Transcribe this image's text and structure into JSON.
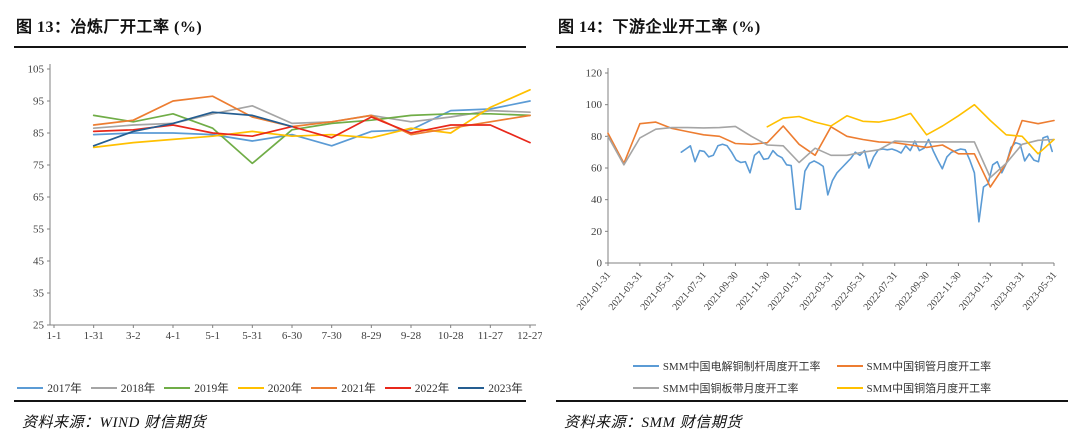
{
  "page": {
    "background": "#ffffff",
    "divider_color": "#141414"
  },
  "figures": [
    {
      "id": "figure-13",
      "title": "图 13：冶炼厂开工率 (%)",
      "source": "资料来源：WIND 财信期货"
    },
    {
      "id": "figure-14",
      "title": "图 14：下游企业开工率 (%)",
      "source": "资料来源：SMM 财信期货"
    }
  ],
  "chart_data": [
    {
      "type": "line",
      "title": "冶炼厂开工率 (%)",
      "xlabel": "",
      "ylabel": "",
      "ylim": [
        25,
        105
      ],
      "ystep": 10,
      "grid": false,
      "legend_position": "bottom",
      "axis_color": "#808080",
      "categories": [
        "1-1",
        "1-31",
        "3-2",
        "4-1",
        "5-1",
        "5-31",
        "6-30",
        "7-30",
        "8-29",
        "9-28",
        "10-28",
        "11-27",
        "12-27"
      ],
      "series": [
        {
          "name": "2017年",
          "color": "#5B9BD5",
          "values": [
            null,
            84.5,
            85,
            85,
            84.5,
            82.5,
            84.5,
            81,
            85.5,
            86,
            92,
            92.5,
            95
          ]
        },
        {
          "name": "2018年",
          "color": "#A5A5A5",
          "values": [
            null,
            86.5,
            87.5,
            88,
            91,
            93.5,
            88,
            88.5,
            90.5,
            88.5,
            90,
            92,
            91.5
          ]
        },
        {
          "name": "2019年",
          "color": "#70AD47",
          "values": [
            null,
            90.5,
            88.5,
            91,
            86.5,
            75.5,
            86,
            88,
            89,
            90.5,
            91,
            91,
            90.5
          ]
        },
        {
          "name": "2020年",
          "color": "#FFC000",
          "values": [
            null,
            80.5,
            82,
            83,
            84,
            85.5,
            84,
            84.5,
            83.5,
            86.5,
            85,
            93,
            98.5
          ]
        },
        {
          "name": "2021年",
          "color": "#ED7D31",
          "values": [
            null,
            87.5,
            89,
            95,
            96.5,
            90,
            87,
            88.5,
            90.5,
            84.5,
            86.5,
            88.5,
            90.5
          ]
        },
        {
          "name": "2022年",
          "color": "#E8281B",
          "values": [
            null,
            85.5,
            86,
            87.5,
            85,
            84,
            87,
            83.5,
            90,
            85,
            87.5,
            87.5,
            82
          ]
        },
        {
          "name": "2023年",
          "color": "#255E91",
          "values": [
            null,
            81,
            85.5,
            88,
            91.5,
            90.5,
            87,
            null,
            null,
            null,
            null,
            null,
            null
          ]
        }
      ]
    },
    {
      "type": "line",
      "title": "下游企业开工率 (%)",
      "xlabel": "",
      "ylabel": "",
      "ylim": [
        0,
        120
      ],
      "ystep": 20,
      "xlim": [
        0,
        28
      ],
      "grid": false,
      "legend_position": "bottom",
      "axis_color": "#808080",
      "x_unit": "months since 2021-01-31",
      "x_tick_months": [
        0,
        2,
        4,
        6,
        8,
        10,
        12,
        14,
        16,
        18,
        20,
        22,
        24,
        26,
        28
      ],
      "x_tick_labels": [
        "2021-01-31",
        "2021-03-31",
        "2021-05-31",
        "2021-07-31",
        "2021-09-30",
        "2021-11-30",
        "2022-01-31",
        "2022-03-31",
        "2022-05-31",
        "2022-07-31",
        "2022-09-30",
        "2022-11-30",
        "2023-01-31",
        "2023-03-31",
        "2023-05-31"
      ],
      "series": [
        {
          "name": "SMM中国电解铜制杆周度开工率",
          "color": "#5B9BD5",
          "start_month": 4.6,
          "month_step": 0.2875,
          "values": [
            70,
            72,
            74,
            64,
            71,
            70.5,
            67,
            68,
            74,
            75,
            74,
            70,
            65,
            63.5,
            64,
            57,
            68,
            70.5,
            65.5,
            66,
            71,
            68,
            66.5,
            62,
            61.5,
            34,
            34,
            58,
            63,
            64.5,
            63,
            61,
            43,
            52,
            57,
            60,
            63,
            66,
            70,
            68,
            71,
            60,
            67,
            71.5,
            72,
            71.5,
            72,
            71,
            69.5,
            74,
            71,
            77,
            71,
            72.5,
            78,
            71,
            65,
            59.5,
            67,
            70,
            71,
            72,
            71.5,
            65,
            57,
            26,
            48,
            50,
            62,
            64,
            57,
            63,
            73,
            76,
            75,
            64.5,
            69,
            65,
            64,
            79,
            80,
            70.5
          ]
        },
        {
          "name": "SMM中国铜管月度开工率",
          "color": "#ED7D31",
          "start_month": 0,
          "month_step": 1,
          "values": [
            82,
            63,
            88,
            89,
            85,
            83,
            81,
            80,
            75.5,
            75,
            76,
            86.5,
            75,
            68,
            86,
            80,
            78,
            76.5,
            76,
            74.5,
            73,
            74.5,
            69,
            69,
            48,
            63,
            90,
            88,
            90
          ]
        },
        {
          "name": "SMM中国铜板带月度开工率",
          "color": "#A5A5A5",
          "start_month": 0,
          "month_step": 1,
          "values": [
            80,
            62,
            79,
            84.5,
            85.5,
            85.5,
            85.3,
            85.5,
            86.3,
            80,
            74.5,
            74,
            63.5,
            72.5,
            68,
            68,
            70,
            71.5,
            77,
            76.5,
            76.5,
            76.5,
            76.5,
            76.5,
            54,
            63,
            75,
            77.5,
            78
          ]
        },
        {
          "name": "SMM中国铜箔月度开工率",
          "color": "#FFC000",
          "start_month": 10,
          "month_step": 1,
          "values": [
            86,
            91.5,
            92.5,
            89,
            86.5,
            93,
            89.5,
            89,
            91,
            94.5,
            81,
            86.5,
            93,
            100,
            90,
            81,
            80,
            69,
            78
          ]
        }
      ]
    }
  ]
}
